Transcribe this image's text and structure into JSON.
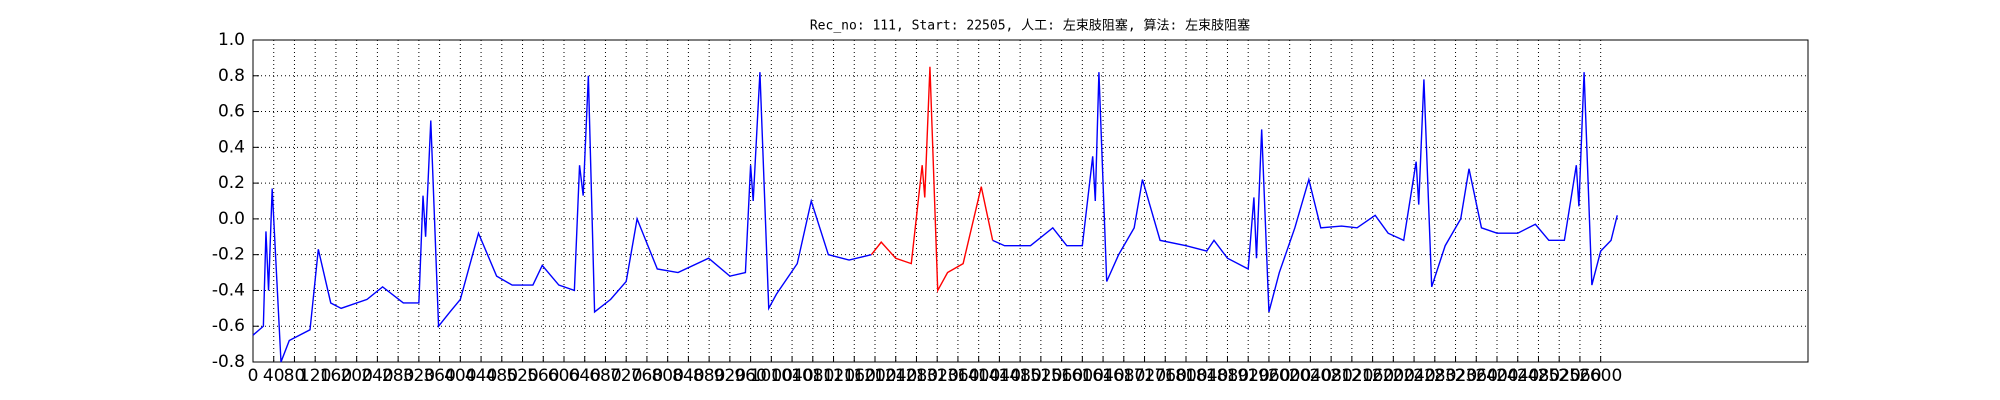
{
  "chart_data": {
    "type": "line",
    "title": "Rec_no: 111, Start: 22505, 人工: 左束肢阻塞, 算法: 左束肢阻塞",
    "xlim": [
      0,
      3000
    ],
    "xticks": [
      0,
      40,
      80,
      120,
      160,
      200,
      240,
      280,
      320,
      360,
      400,
      440,
      480,
      520,
      560,
      600,
      640,
      680,
      720,
      760,
      800,
      840,
      880,
      920,
      960,
      1000,
      1040,
      1080,
      1120,
      1160,
      1200,
      1240,
      1280,
      1320,
      1360,
      1400,
      1440,
      1480,
      1520,
      1560,
      1600,
      1640,
      1680,
      1720,
      1760,
      1800,
      1840,
      1880,
      1920,
      1960,
      2000,
      2040,
      2080,
      2120,
      2160,
      2200,
      2240,
      2280,
      2320,
      2360,
      2400,
      2440,
      2480,
      2520,
      2560,
      2600
    ],
    "ylim": [
      -0.8,
      1.0
    ],
    "yticks": [
      {
        "value": 1,
        "label": "1.0"
      },
      0.8,
      0.6,
      0.4,
      0.2,
      {
        "value": 0,
        "label": "0.0"
      },
      -0.2,
      -0.4,
      -0.6,
      -0.8
    ],
    "grid": true,
    "series": [
      {
        "color": "#0000ff",
        "x": [
          0,
          20,
          25,
          30,
          37,
          54,
          70,
          110,
          126,
          150,
          170,
          220,
          250,
          290,
          320,
          328,
          333,
          343,
          358,
          380,
          400,
          435,
          470,
          500,
          540,
          558,
          590,
          620,
          630,
          637,
          647,
          659,
          690,
          720,
          741,
          780,
          820,
          879,
          920,
          950,
          960,
          965,
          978,
          995,
          1010,
          1050,
          1077,
          1110,
          1150,
          1193,
          1300,
          1427,
          1450,
          1500,
          1543,
          1570,
          1600,
          1620,
          1625,
          1632,
          1647,
          1670,
          1700,
          1716,
          1750,
          1800,
          1840,
          1854,
          1880,
          1920,
          1931,
          1936,
          1946,
          1960,
          1980,
          2010,
          2037,
          2060,
          2100,
          2130,
          2165,
          2190,
          2220,
          2244,
          2249,
          2259,
          2274,
          2300,
          2330,
          2346,
          2370,
          2400,
          2440,
          2474,
          2500,
          2530,
          2553,
          2558,
          2568,
          2583,
          2600,
          2620,
          2632
        ],
        "values": [
          -0.65,
          -0.6,
          -0.07,
          -0.4,
          0.17,
          -0.8,
          -0.68,
          -0.62,
          -0.17,
          -0.47,
          -0.5,
          -0.45,
          -0.38,
          -0.47,
          -0.47,
          0.13,
          -0.1,
          0.55,
          -0.6,
          -0.52,
          -0.45,
          -0.08,
          -0.32,
          -0.37,
          -0.37,
          -0.26,
          -0.37,
          -0.4,
          0.3,
          0.13,
          0.8,
          -0.52,
          -0.45,
          -0.35,
          0.0,
          -0.28,
          -0.3,
          -0.22,
          -0.32,
          -0.3,
          0.3,
          0.1,
          0.82,
          -0.5,
          -0.42,
          -0.25,
          0.1,
          -0.2,
          -0.23,
          -0.2,
          null,
          -0.12,
          -0.15,
          -0.15,
          -0.05,
          -0.15,
          -0.15,
          0.35,
          0.1,
          0.82,
          -0.35,
          -0.2,
          -0.05,
          0.22,
          -0.12,
          -0.15,
          -0.18,
          -0.12,
          -0.22,
          -0.28,
          0.12,
          -0.22,
          0.5,
          -0.52,
          -0.3,
          -0.05,
          0.22,
          -0.05,
          -0.04,
          -0.05,
          0.02,
          -0.08,
          -0.12,
          0.32,
          0.08,
          0.78,
          -0.38,
          -0.15,
          0.0,
          0.28,
          -0.05,
          -0.08,
          -0.08,
          -0.03,
          -0.12,
          -0.12,
          0.3,
          0.07,
          0.82,
          -0.37,
          -0.18,
          -0.12,
          0.02
        ]
      },
      {
        "color": "#ff0000",
        "x": [
          1193,
          1212,
          1240,
          1270,
          1291,
          1296,
          1306,
          1321,
          1340,
          1370,
          1405,
          1427
        ],
        "values": [
          -0.2,
          -0.13,
          -0.22,
          -0.25,
          0.3,
          0.12,
          0.85,
          -0.4,
          -0.3,
          -0.25,
          0.18,
          -0.12
        ]
      }
    ]
  }
}
